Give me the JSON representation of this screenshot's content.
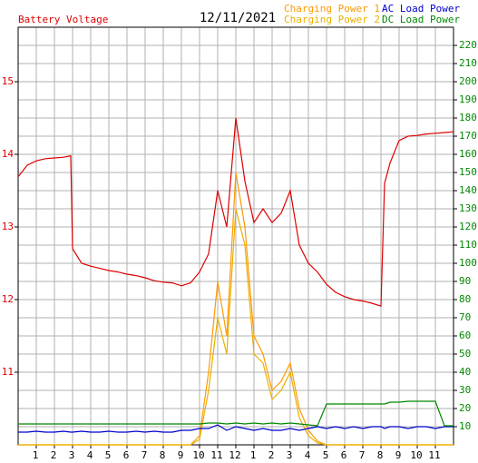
{
  "chart_data": {
    "type": "line",
    "title": "12/11/2021",
    "y_label": "Battery Voltage",
    "xlim": [
      0,
      24
    ],
    "xticks": [
      1,
      2,
      3,
      4,
      5,
      6,
      7,
      8,
      9,
      10,
      11,
      12,
      {
        "value": 13,
        "label": "1"
      },
      {
        "value": 14,
        "label": "2"
      },
      {
        "value": 15,
        "label": "3"
      },
      {
        "value": 16,
        "label": "4"
      },
      {
        "value": 17,
        "label": "5"
      },
      {
        "value": 18,
        "label": "6"
      },
      {
        "value": 19,
        "label": "7"
      },
      {
        "value": 20,
        "label": "8"
      },
      {
        "value": 21,
        "label": "9"
      },
      {
        "value": 22,
        "label": "10"
      },
      {
        "value": 23,
        "label": "11"
      }
    ],
    "ylim": [
      10,
      15.75
    ],
    "yticks": [
      11,
      12,
      13,
      14,
      15
    ],
    "y2lim": [
      0,
      230
    ],
    "y2ticks": [
      10,
      20,
      30,
      40,
      50,
      60,
      70,
      80,
      90,
      100,
      110,
      120,
      130,
      140,
      150,
      160,
      170,
      180,
      190,
      200,
      210,
      220
    ],
    "grid": true,
    "x": [
      0,
      0.5,
      1,
      1.5,
      2,
      2.5,
      2.9,
      3,
      3.5,
      4,
      4.5,
      5,
      5.5,
      6,
      6.5,
      7,
      7.5,
      8,
      8.5,
      9,
      9.5,
      10,
      10.5,
      11,
      11.5,
      12,
      12.5,
      13,
      13.5,
      14,
      14.5,
      15,
      15.5,
      16,
      16.5,
      17,
      17.5,
      18,
      18.5,
      19,
      19.5,
      20,
      20.2,
      20.5,
      21,
      21.5,
      22,
      22.5,
      23,
      23.5,
      24
    ],
    "series": [
      {
        "name": "Battery Voltage",
        "color": "#dd0000",
        "axis": "y",
        "values": [
          13.69,
          13.85,
          13.91,
          13.94,
          13.95,
          13.96,
          13.98,
          12.7,
          12.5,
          12.46,
          12.43,
          12.4,
          12.38,
          12.35,
          12.33,
          12.3,
          12.26,
          12.24,
          12.23,
          12.19,
          12.23,
          12.38,
          12.63,
          13.5,
          13.0,
          14.5,
          13.63,
          13.06,
          13.25,
          13.06,
          13.19,
          13.5,
          12.75,
          12.5,
          12.38,
          12.21,
          12.1,
          12.04,
          12.0,
          11.98,
          11.95,
          11.91,
          13.6,
          13.88,
          14.19,
          14.25,
          14.26,
          14.28,
          14.29,
          14.3,
          14.31
        ]
      },
      {
        "name": "Charging Power 1",
        "color": "#ff9900",
        "axis": "y2",
        "values": [
          0,
          0,
          0,
          0,
          0,
          0,
          0,
          0,
          0,
          0,
          0,
          0,
          0,
          0,
          0,
          0,
          0,
          0,
          0,
          0,
          0,
          5,
          40,
          90,
          60,
          150,
          120,
          60,
          50,
          30,
          35,
          45,
          20,
          8,
          2,
          0,
          0,
          0,
          0,
          0,
          0,
          0,
          0,
          0,
          0,
          0,
          0,
          0,
          0,
          0,
          0
        ]
      },
      {
        "name": "Charging Power 2",
        "color": "#e8b000",
        "axis": "y2",
        "values": [
          0,
          0,
          0,
          0,
          0,
          0,
          0,
          0,
          0,
          0,
          0,
          0,
          0,
          0,
          0,
          0,
          0,
          0,
          0,
          0,
          0,
          3,
          30,
          70,
          50,
          130,
          110,
          50,
          45,
          25,
          30,
          40,
          15,
          5,
          1,
          0,
          0,
          0,
          0,
          0,
          0,
          0,
          0,
          0,
          0,
          0,
          0,
          0,
          0,
          0,
          0
        ]
      },
      {
        "name": "AC Load Power",
        "color": "#0000cc",
        "axis": "y2",
        "values": [
          7,
          7,
          7.5,
          7,
          7,
          7.5,
          7,
          7,
          7.5,
          7,
          7,
          7.5,
          7,
          7,
          7.5,
          7,
          7.5,
          7,
          7,
          8,
          8,
          9,
          9,
          11,
          8,
          10,
          9,
          8,
          9,
          8,
          8,
          9,
          8,
          9,
          10,
          9,
          10,
          9,
          10,
          9,
          10,
          10,
          9,
          10,
          10,
          9,
          10,
          10,
          9,
          10,
          10
        ]
      },
      {
        "name": "DC Load Power",
        "color": "#008800",
        "axis": "y2",
        "values": [
          11.5,
          11.5,
          11.5,
          11.5,
          11.5,
          11.5,
          11.5,
          11.5,
          11.5,
          11.5,
          11.5,
          11.5,
          11.5,
          11.5,
          11.5,
          11.5,
          11.5,
          11.5,
          11.5,
          11.5,
          11.5,
          11.5,
          12,
          12,
          11.5,
          12,
          11.5,
          12,
          11.5,
          12,
          11.5,
          12,
          11.5,
          11,
          10.5,
          22.5,
          22.5,
          22.5,
          22.5,
          22.5,
          22.5,
          22.5,
          22.5,
          23.5,
          23.5,
          24,
          24,
          24,
          24,
          10.5,
          10.5
        ]
      }
    ]
  }
}
